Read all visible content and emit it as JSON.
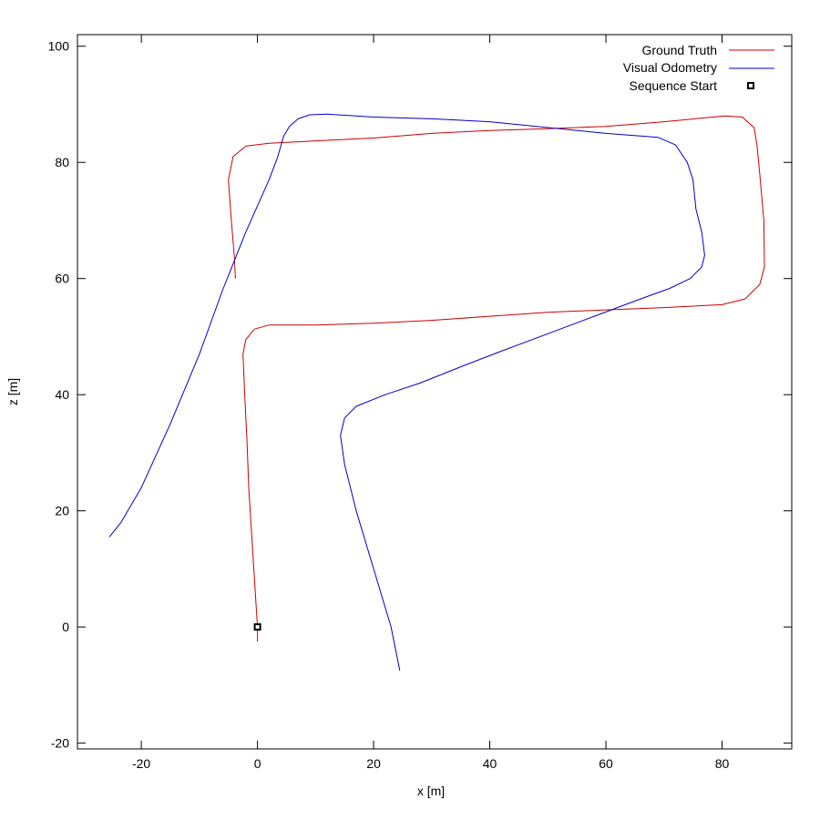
{
  "chart_data": {
    "type": "line",
    "title": "",
    "xlabel": "x [m]",
    "ylabel": "z [m]",
    "xlim": [
      -31,
      92
    ],
    "ylim": [
      -21,
      102
    ],
    "xticks": [
      -20,
      0,
      20,
      40,
      60,
      80
    ],
    "yticks": [
      -20,
      0,
      20,
      40,
      60,
      80,
      100
    ],
    "grid": false,
    "legend_position": "top-right",
    "series": [
      {
        "name": "Ground Truth",
        "color": "#cc0000",
        "points": [
          [
            0,
            -2.5
          ],
          [
            0,
            0
          ],
          [
            -0.5,
            8
          ],
          [
            -1,
            16
          ],
          [
            -1.5,
            24
          ],
          [
            -1.8,
            32
          ],
          [
            -2.2,
            40
          ],
          [
            -2.5,
            47
          ],
          [
            -2,
            49.5
          ],
          [
            -0.5,
            51.3
          ],
          [
            2,
            52
          ],
          [
            10,
            52
          ],
          [
            20,
            52.3
          ],
          [
            30,
            52.8
          ],
          [
            40,
            53.5
          ],
          [
            50,
            54.2
          ],
          [
            60,
            54.6
          ],
          [
            70,
            55
          ],
          [
            80,
            55.5
          ],
          [
            84,
            56.5
          ],
          [
            86.5,
            59
          ],
          [
            87.3,
            62
          ],
          [
            87.2,
            70
          ],
          [
            86.5,
            78
          ],
          [
            86,
            83
          ],
          [
            85.5,
            86
          ],
          [
            83.5,
            87.8
          ],
          [
            80.5,
            88
          ],
          [
            70,
            87
          ],
          [
            60,
            86.2
          ],
          [
            50,
            85.8
          ],
          [
            40,
            85.5
          ],
          [
            30,
            85
          ],
          [
            20,
            84.2
          ],
          [
            10,
            83.7
          ],
          [
            2,
            83.3
          ],
          [
            -2,
            82.8
          ],
          [
            -4.2,
            81
          ],
          [
            -5,
            77
          ],
          [
            -4.5,
            70
          ],
          [
            -4,
            64
          ],
          [
            -3.8,
            60
          ]
        ]
      },
      {
        "name": "Visual Odometry",
        "color": "#0000cc",
        "points": [
          [
            24.5,
            -7.5
          ],
          [
            23,
            0
          ],
          [
            20,
            10
          ],
          [
            17,
            20
          ],
          [
            15,
            28
          ],
          [
            14.3,
            33
          ],
          [
            15,
            36
          ],
          [
            17,
            38
          ],
          [
            22,
            40
          ],
          [
            28,
            42
          ],
          [
            35,
            44.8
          ],
          [
            42,
            47.5
          ],
          [
            50,
            50.5
          ],
          [
            58,
            53.5
          ],
          [
            66,
            56.5
          ],
          [
            71,
            58.3
          ],
          [
            74.5,
            60
          ],
          [
            76.5,
            62
          ],
          [
            77,
            64
          ],
          [
            76.5,
            68
          ],
          [
            75.5,
            72
          ],
          [
            75,
            77
          ],
          [
            74,
            80
          ],
          [
            72,
            83
          ],
          [
            69,
            84.3
          ],
          [
            60,
            85
          ],
          [
            50,
            86
          ],
          [
            40,
            87
          ],
          [
            30,
            87.5
          ],
          [
            20,
            87.8
          ],
          [
            12,
            88.3
          ],
          [
            9,
            88.2
          ],
          [
            7,
            87.5
          ],
          [
            5.5,
            86.2
          ],
          [
            4.5,
            84.5
          ],
          [
            3.5,
            81
          ],
          [
            2,
            77
          ],
          [
            -2,
            68
          ],
          [
            -6,
            58
          ],
          [
            -10,
            47
          ],
          [
            -15,
            35
          ],
          [
            -20,
            24
          ],
          [
            -23.5,
            18
          ],
          [
            -25.5,
            15.5
          ]
        ]
      }
    ],
    "markers": [
      {
        "name": "Sequence Start",
        "x": 0,
        "y": 0,
        "shape": "square",
        "color": "#000000"
      }
    ]
  }
}
